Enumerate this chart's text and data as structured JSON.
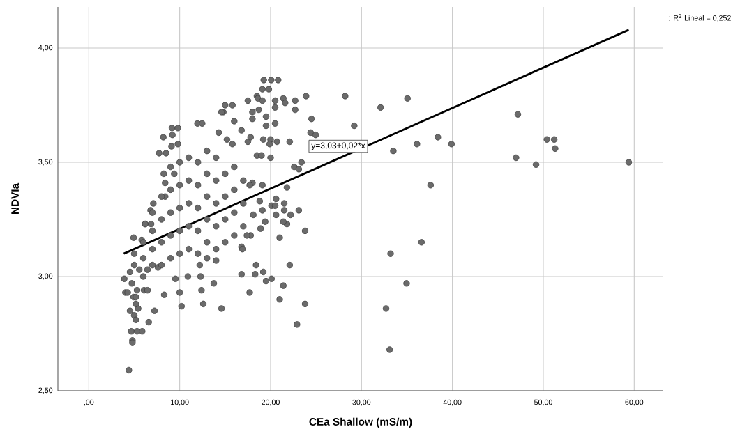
{
  "chart_data": {
    "type": "scatter",
    "xlabel": "CEa Shallow (mS/m)",
    "ylabel": "NDVIa",
    "annotations": [
      ": R$^{2}$ Lineal = 0,252",
      {
        "text": "y=3,03+0,02*x",
        "x": 30.7,
        "y": 3.57
      }
    ],
    "xlim": [
      -3.4,
      63.2
    ],
    "ylim": [
      2.5,
      4.18
    ],
    "xticks": [
      {
        "value": 0,
        "label": ",00"
      },
      {
        "value": 10,
        "label": "10,00"
      },
      {
        "value": 20,
        "label": "20,00"
      },
      {
        "value": 30,
        "label": "30,00"
      },
      {
        "value": 40,
        "label": "40,00"
      },
      {
        "value": 50,
        "label": "50,00"
      },
      {
        "value": 60,
        "label": "60,00"
      }
    ],
    "yticks": [
      {
        "value": 2.5,
        "label": "2,50"
      },
      {
        "value": 3,
        "label": "3,00"
      },
      {
        "value": 3.5,
        "label": "3,50"
      },
      {
        "value": 4,
        "label": "4,00"
      }
    ],
    "grid": true,
    "series": [
      {
        "marker": "circle",
        "color": "#6b6b6b",
        "x": [
          35.06,
          32.1,
          29.2,
          33.5,
          36.1,
          38.4,
          39.9,
          47.2,
          47.0,
          49.2,
          50.4,
          51.2,
          51.3,
          59.4,
          37.6,
          36.6,
          33.2,
          34.96,
          32.7,
          33.1,
          28.2,
          23.9,
          19.25,
          20.07,
          20.83,
          24.5,
          24.4,
          24.96,
          22.1,
          22.6,
          23.4,
          23.1,
          21.8,
          23.1,
          23.8,
          22.1,
          23.8,
          22.9,
          21.0,
          21.4,
          20.1,
          19.5,
          19.2,
          18.4,
          18.3,
          16.8,
          17.7,
          13.75,
          14.6,
          21.0,
          21.5,
          21.5,
          22.2,
          21.8,
          21.4,
          20.6,
          20.1,
          20.5,
          20.6,
          19.1,
          19.4,
          18.9,
          18.8,
          20.0,
          19.2,
          20.0,
          20.7,
          19.9,
          19.5,
          20.5,
          19.5,
          20.5,
          20.5,
          21.4,
          21.6,
          22.7,
          22.7,
          19.1,
          19.8,
          18.5,
          18.6,
          19.1,
          17.5,
          18.0,
          18.0,
          18.7,
          15.0,
          15.8,
          14.8,
          16.0,
          16.8,
          18.5,
          19.0,
          17.5,
          17.8,
          14.3,
          15.2,
          15.8,
          18.0,
          19.1,
          17.7,
          17.8,
          17.4,
          18.1,
          16.8,
          16.9,
          4.41,
          4.8,
          4.8,
          4.67,
          5.31,
          5.87,
          4.54,
          5.0,
          5.43,
          5.18,
          5.18,
          6.59,
          7.23,
          8.3,
          10.0,
          10.2,
          12.6,
          12.4,
          3.9,
          4.03,
          4.28,
          4.93,
          5.18,
          4.74,
          5.31,
          6.08,
          6.46,
          4.54,
          5.56,
          6.46,
          7.61,
          9.53,
          10.9,
          12.3,
          4.93,
          5.82,
          6.2,
          6.85,
          14.0,
          13.0,
          12.2,
          9.15,
          9.8,
          9.2,
          8.2,
          11.96,
          12.47,
          7.74,
          8.5,
          9.1,
          9.8,
          8.25,
          8.4,
          8.4,
          9.4,
          7.1,
          6.8,
          6.2,
          14.6,
          5,
          5,
          6,
          6,
          6,
          7,
          7,
          7,
          7,
          8,
          8,
          8,
          8,
          9,
          9,
          9,
          9,
          9,
          10,
          10,
          10,
          10,
          10,
          11,
          11,
          11,
          11,
          11,
          12,
          12,
          12,
          12,
          12,
          13,
          13,
          13,
          13,
          13,
          14,
          14,
          14,
          14,
          14,
          15,
          15,
          15,
          15,
          16,
          16,
          16,
          16,
          17,
          17,
          17
        ],
        "values": [
          3.78,
          3.74,
          3.66,
          3.55,
          3.58,
          3.61,
          3.58,
          3.71,
          3.52,
          3.49,
          3.6,
          3.6,
          3.56,
          3.5,
          3.4,
          3.15,
          3.1,
          2.97,
          2.86,
          2.68,
          3.79,
          3.79,
          3.86,
          3.86,
          3.86,
          3.69,
          3.63,
          3.62,
          3.59,
          3.48,
          3.5,
          3.47,
          3.39,
          3.29,
          3.2,
          3.05,
          2.88,
          2.79,
          2.9,
          2.96,
          2.99,
          2.98,
          3.02,
          3.05,
          3.01,
          3.01,
          2.93,
          2.97,
          2.86,
          3.17,
          3.32,
          3.29,
          3.27,
          3.23,
          3.24,
          3.34,
          3.31,
          3.31,
          3.27,
          3.29,
          3.24,
          3.21,
          3.33,
          3.52,
          3.6,
          3.6,
          3.59,
          3.58,
          3.66,
          3.67,
          3.7,
          3.77,
          3.74,
          3.78,
          3.76,
          3.77,
          3.73,
          3.82,
          3.82,
          3.79,
          3.78,
          3.77,
          3.77,
          3.72,
          3.69,
          3.73,
          3.75,
          3.75,
          3.72,
          3.68,
          3.64,
          3.53,
          3.53,
          3.59,
          3.61,
          3.63,
          3.6,
          3.58,
          3.41,
          3.4,
          3.4,
          3.18,
          3.18,
          3.27,
          3.13,
          3.12,
          2.59,
          2.72,
          2.71,
          2.76,
          2.76,
          2.76,
          2.85,
          2.83,
          2.86,
          2.81,
          2.88,
          2.8,
          2.85,
          2.92,
          2.93,
          2.87,
          2.88,
          2.94,
          2.99,
          2.93,
          2.93,
          2.91,
          2.91,
          2.97,
          2.94,
          2.94,
          2.94,
          3.02,
          3.03,
          3.03,
          3.04,
          2.99,
          3.0,
          3.0,
          3.17,
          3.16,
          3.23,
          3.23,
          3.07,
          3.08,
          3.05,
          3.65,
          3.65,
          3.62,
          3.61,
          3.67,
          3.67,
          3.54,
          3.54,
          3.57,
          3.58,
          3.45,
          3.41,
          3.35,
          3.45,
          3.32,
          3.29,
          3.23,
          3.72,
          3.05,
          3.1,
          3.0,
          3.08,
          3.15,
          3.05,
          3.12,
          3.2,
          3.28,
          3.05,
          3.15,
          3.25,
          3.35,
          3.08,
          3.18,
          3.28,
          3.38,
          3.48,
          3.1,
          3.2,
          3.3,
          3.4,
          3.5,
          3.12,
          3.22,
          3.32,
          3.42,
          3.52,
          3.1,
          3.2,
          3.3,
          3.4,
          3.5,
          3.15,
          3.25,
          3.35,
          3.45,
          3.55,
          3.12,
          3.22,
          3.32,
          3.42,
          3.52,
          3.15,
          3.25,
          3.35,
          3.45,
          3.18,
          3.28,
          3.38,
          3.48,
          3.22,
          3.32,
          3.42
        ]
      },
      {
        "type": "line",
        "marker": "none",
        "color": "#000000",
        "x": [
          3.85,
          59.4
        ],
        "values": [
          3.1,
          4.08
        ]
      }
    ]
  }
}
